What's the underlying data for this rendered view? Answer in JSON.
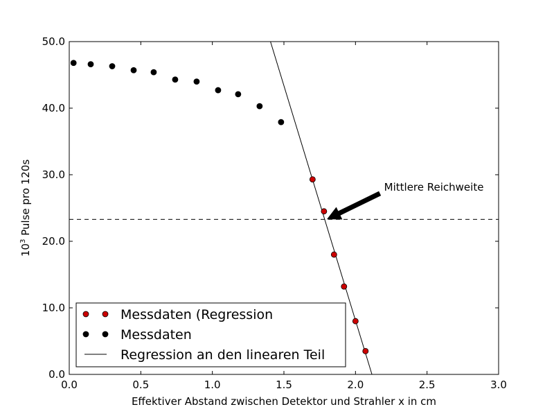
{
  "chart_data": {
    "type": "scatter",
    "xlabel": "Effektiver Abstand zwischen Detektor und Strahler x in cm",
    "ylabel_prefix": "10",
    "ylabel_exp": "3",
    "ylabel_rest": " Pulse pro 120s",
    "xlim": [
      0.0,
      3.0
    ],
    "ylim": [
      0.0,
      50.0
    ],
    "xticks": [
      0.0,
      0.5,
      1.0,
      1.5,
      2.0,
      2.5,
      3.0
    ],
    "xtick_labels": [
      "0.0",
      "0.5",
      "1.0",
      "1.5",
      "2.0",
      "2.5",
      "3.0"
    ],
    "yticks": [
      0.0,
      10.0,
      20.0,
      30.0,
      40.0,
      50.0
    ],
    "ytick_labels": [
      "0.0",
      "10.0",
      "20.0",
      "30.0",
      "40.0",
      "50.0"
    ],
    "grid": false,
    "legend_placement": "lower-left",
    "series": [
      {
        "name": "Messdaten (Regression",
        "kind": "points",
        "color": "#cc0000",
        "x": [
          1.7,
          1.78,
          1.85,
          1.92,
          2.0,
          2.07
        ],
        "y": [
          29.3,
          24.5,
          18.0,
          13.2,
          8.0,
          3.5
        ]
      },
      {
        "name": "Messdaten",
        "kind": "points",
        "color": "#000000",
        "x": [
          0.03,
          0.15,
          0.3,
          0.45,
          0.59,
          0.74,
          0.89,
          1.04,
          1.18,
          1.33,
          1.48
        ],
        "y": [
          46.8,
          46.6,
          46.3,
          45.7,
          45.4,
          44.3,
          44.0,
          42.7,
          42.1,
          40.3,
          37.9
        ]
      },
      {
        "name": "Regression an den linearen Teil",
        "kind": "line",
        "color": "#000000",
        "x": [
          1.406,
          2.115
        ],
        "y": [
          50.0,
          0.0
        ]
      }
    ],
    "reference_line_y": 23.3,
    "annotation": {
      "text": "Mittlere Reichweite",
      "x_point": 1.8,
      "y_point": 23.3,
      "x_text": 2.2,
      "y_text": 27.4
    }
  }
}
